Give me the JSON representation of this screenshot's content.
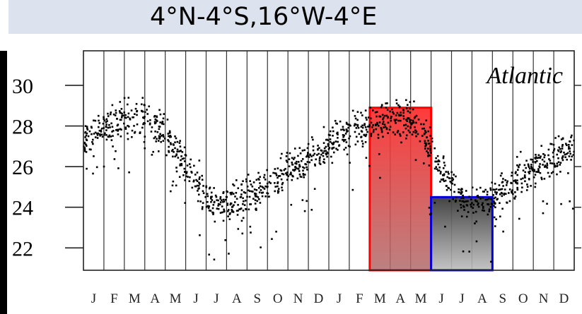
{
  "header": {
    "title": "4°N-4°S,16°W-4°E"
  },
  "chart_data": {
    "type": "scatter",
    "title": "4°N-4°S,16°W-4°E",
    "region_label": "Atlantic",
    "xlabel": "",
    "ylabel": "",
    "ylim": [
      20.9,
      31.7
    ],
    "yticks": [
      22,
      24,
      26,
      28,
      30
    ],
    "months": [
      "J",
      "F",
      "M",
      "A",
      "M",
      "J",
      "J",
      "A",
      "S",
      "O",
      "N",
      "D",
      "J",
      "F",
      "M",
      "A",
      "M",
      "J",
      "J",
      "A",
      "S",
      "O",
      "N",
      "D"
    ],
    "grid": "vertical lines between months",
    "highlights": [
      {
        "months_from": 14,
        "months_to": 17,
        "y_top": 28.9,
        "color": "#ff0000"
      },
      {
        "months_from": 17,
        "months_to": 20,
        "y_top": 24.5,
        "color": "#0000dd"
      }
    ],
    "point_color": "#000000",
    "series": [
      {
        "trend": [
          {
            "m": 0.0,
            "y": 27.3
          },
          {
            "m": 1.0,
            "y": 27.9
          },
          {
            "m": 2.0,
            "y": 28.3
          },
          {
            "m": 3.0,
            "y": 28.5
          },
          {
            "m": 3.8,
            "y": 28.0
          },
          {
            "m": 4.5,
            "y": 26.8
          },
          {
            "m": 5.3,
            "y": 25.6
          },
          {
            "m": 6.3,
            "y": 24.3
          },
          {
            "m": 7.3,
            "y": 24.2
          },
          {
            "m": 8.3,
            "y": 24.7
          },
          {
            "m": 9.3,
            "y": 25.3
          },
          {
            "m": 10.3,
            "y": 26.0
          },
          {
            "m": 11.3,
            "y": 26.6
          },
          {
            "m": 12.3,
            "y": 27.2
          },
          {
            "m": 13.3,
            "y": 27.8
          },
          {
            "m": 14.3,
            "y": 28.2
          },
          {
            "m": 15.3,
            "y": 28.4
          },
          {
            "m": 16.3,
            "y": 28.2
          },
          {
            "m": 17.0,
            "y": 26.8
          },
          {
            "m": 17.8,
            "y": 25.3
          },
          {
            "m": 18.5,
            "y": 24.4
          },
          {
            "m": 19.3,
            "y": 24.1
          },
          {
            "m": 20.3,
            "y": 24.6
          },
          {
            "m": 21.3,
            "y": 25.4
          },
          {
            "m": 22.3,
            "y": 26.0
          },
          {
            "m": 23.3,
            "y": 26.6
          },
          {
            "m": 24.0,
            "y": 27.0
          }
        ]
      }
    ]
  }
}
